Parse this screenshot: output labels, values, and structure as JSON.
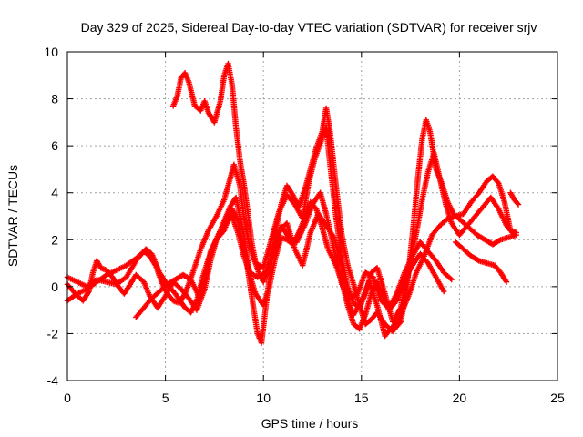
{
  "chart_data": {
    "type": "scatter",
    "title": "Day 329 of 2025, Sidereal Day-to-day VTEC variation (SDTVAR) for receiver srjv",
    "xlabel": "GPS time / hours",
    "ylabel": "SDTVAR / TECUs",
    "xlim": [
      0,
      25
    ],
    "ylim": [
      -4,
      10
    ],
    "xticks": [
      0,
      5,
      10,
      15,
      20,
      25
    ],
    "xtick_labels": [
      "0",
      "5",
      "10",
      "15",
      "20",
      "25"
    ],
    "yticks": [
      -4,
      -2,
      0,
      2,
      4,
      6,
      8,
      10
    ],
    "ytick_labels": [
      "-4",
      "-2",
      "0",
      "2",
      "4",
      "6",
      "8",
      "10"
    ],
    "grid": true,
    "marker": "plus",
    "color": "#ff0000",
    "series": [
      {
        "points": [
          [
            0.0,
            0.4
          ],
          [
            0.5,
            0.2
          ],
          [
            1.0,
            0.0
          ],
          [
            1.5,
            0.3
          ],
          [
            2.0,
            0.2
          ],
          [
            2.5,
            0.1
          ],
          [
            3.0,
            0.4
          ],
          [
            3.5,
            1.1
          ],
          [
            4.0,
            1.6
          ],
          [
            4.3,
            1.4
          ],
          [
            4.7,
            0.6
          ],
          [
            5.0,
            0.2
          ],
          [
            5.5,
            -0.3
          ],
          [
            6.0,
            -0.9
          ],
          [
            6.3,
            -1.1
          ],
          [
            6.6,
            -0.6
          ],
          [
            6.9,
            0.4
          ],
          [
            7.2,
            1.2
          ],
          [
            7.6,
            2.0
          ],
          [
            8.0,
            2.8
          ],
          [
            8.3,
            3.4
          ],
          [
            8.6,
            3.8
          ],
          [
            9.0,
            2.2
          ],
          [
            9.3,
            0.5
          ],
          [
            9.6,
            -0.3
          ],
          [
            10.0,
            -0.8
          ],
          [
            10.3,
            0.0
          ],
          [
            10.6,
            1.2
          ],
          [
            10.9,
            2.1
          ],
          [
            11.2,
            2.0
          ],
          [
            11.5,
            1.8
          ],
          [
            11.8,
            2.3
          ],
          [
            12.1,
            2.9
          ],
          [
            12.4,
            3.6
          ],
          [
            12.7,
            3.3
          ],
          [
            13.0,
            2.5
          ],
          [
            13.3,
            1.6
          ],
          [
            13.7,
            0.9
          ],
          [
            14.0,
            0.2
          ],
          [
            14.3,
            -0.8
          ],
          [
            14.6,
            -1.6
          ],
          [
            14.9,
            -1.8
          ],
          [
            15.2,
            -1.2
          ],
          [
            15.5,
            -0.3
          ],
          [
            15.8,
            0.2
          ],
          [
            16.1,
            -0.4
          ],
          [
            16.4,
            -1.0
          ],
          [
            16.8,
            -0.6
          ],
          [
            17.2,
            0.3
          ],
          [
            17.6,
            0.9
          ],
          [
            18.0,
            1.4
          ],
          [
            18.4,
            1.0
          ],
          [
            18.8,
            0.4
          ],
          [
            19.2,
            -0.2
          ]
        ]
      },
      {
        "points": [
          [
            0.0,
            -0.6
          ],
          [
            0.5,
            -0.3
          ],
          [
            1.0,
            -0.1
          ],
          [
            1.5,
            0.2
          ],
          [
            2.0,
            0.5
          ],
          [
            2.5,
            0.7
          ],
          [
            3.0,
            0.9
          ],
          [
            3.5,
            1.2
          ],
          [
            3.9,
            1.5
          ],
          [
            4.2,
            1.3
          ],
          [
            4.5,
            0.9
          ],
          [
            4.8,
            0.2
          ],
          [
            5.1,
            -0.3
          ],
          [
            5.4,
            -0.6
          ],
          [
            5.7,
            -0.7
          ],
          [
            6.0,
            -0.3
          ],
          [
            6.4,
            0.6
          ],
          [
            6.8,
            1.6
          ],
          [
            7.2,
            2.4
          ],
          [
            7.6,
            3.0
          ],
          [
            8.0,
            3.7
          ],
          [
            8.3,
            4.6
          ],
          [
            8.5,
            5.2
          ],
          [
            8.8,
            4.3
          ],
          [
            9.0,
            3.0
          ],
          [
            9.3,
            1.7
          ],
          [
            9.6,
            1.0
          ],
          [
            10.0,
            0.8
          ],
          [
            10.4,
            2.0
          ],
          [
            10.8,
            3.2
          ],
          [
            11.2,
            3.9
          ],
          [
            11.6,
            3.5
          ],
          [
            12.0,
            2.9
          ],
          [
            12.3,
            4.4
          ],
          [
            12.6,
            5.4
          ],
          [
            12.9,
            6.1
          ],
          [
            13.2,
            6.8
          ],
          [
            13.4,
            5.2
          ],
          [
            13.7,
            3.0
          ],
          [
            14.0,
            1.2
          ],
          [
            14.3,
            0.0
          ],
          [
            14.6,
            -0.7
          ],
          [
            14.9,
            -0.9
          ],
          [
            15.2,
            -0.3
          ],
          [
            15.5,
            0.6
          ],
          [
            15.8,
            0.8
          ],
          [
            16.2,
            -0.3
          ],
          [
            16.6,
            -1.5
          ],
          [
            17.0,
            -0.9
          ],
          [
            17.4,
            0.6
          ],
          [
            17.8,
            2.3
          ],
          [
            18.1,
            3.7
          ],
          [
            18.4,
            4.9
          ],
          [
            18.7,
            5.7
          ],
          [
            19.0,
            4.6
          ],
          [
            19.3,
            3.5
          ],
          [
            19.6,
            2.7
          ],
          [
            20.0,
            2.2
          ],
          [
            20.4,
            2.6
          ],
          [
            20.8,
            3.0
          ],
          [
            21.2,
            3.4
          ],
          [
            21.6,
            3.8
          ],
          [
            22.0,
            3.3
          ],
          [
            22.4,
            2.6
          ],
          [
            22.8,
            2.2
          ]
        ]
      },
      {
        "points": [
          [
            5.4,
            7.7
          ],
          [
            5.6,
            8.1
          ],
          [
            5.8,
            8.9
          ],
          [
            6.0,
            9.1
          ],
          [
            6.2,
            8.7
          ],
          [
            6.5,
            7.7
          ],
          [
            6.8,
            7.5
          ],
          [
            7.0,
            7.9
          ],
          [
            7.2,
            7.4
          ],
          [
            7.5,
            7.0
          ],
          [
            7.8,
            7.9
          ],
          [
            8.0,
            9.0
          ],
          [
            8.2,
            9.5
          ],
          [
            8.4,
            8.6
          ],
          [
            8.6,
            6.8
          ],
          [
            8.8,
            5.4
          ],
          [
            9.0,
            4.4
          ],
          [
            9.2,
            3.2
          ],
          [
            9.4,
            1.9
          ],
          [
            9.6,
            1.0
          ],
          [
            9.8,
            0.5
          ],
          [
            10.0,
            0.2
          ],
          [
            10.3,
            0.9
          ],
          [
            10.6,
            2.3
          ],
          [
            10.9,
            3.5
          ],
          [
            11.2,
            4.3
          ],
          [
            11.5,
            3.9
          ],
          [
            11.8,
            3.4
          ],
          [
            12.1,
            4.1
          ],
          [
            12.4,
            5.0
          ],
          [
            12.7,
            5.9
          ],
          [
            13.0,
            6.6
          ],
          [
            13.2,
            7.6
          ],
          [
            13.4,
            6.6
          ],
          [
            13.7,
            4.3
          ],
          [
            14.0,
            2.2
          ],
          [
            14.3,
            0.9
          ],
          [
            14.6,
            0.1
          ],
          [
            14.9,
            -0.8
          ],
          [
            15.2,
            -1.6
          ],
          [
            15.5,
            -1.4
          ],
          [
            15.8,
            -1.1
          ],
          [
            16.2,
            -1.6
          ],
          [
            16.6,
            -1.9
          ],
          [
            17.0,
            -1.5
          ],
          [
            17.3,
            -0.2
          ],
          [
            17.6,
            2.2
          ],
          [
            17.9,
            4.8
          ],
          [
            18.1,
            6.3
          ],
          [
            18.3,
            7.1
          ],
          [
            18.5,
            6.6
          ],
          [
            18.8,
            5.0
          ],
          [
            19.1,
            4.4
          ],
          [
            19.4,
            3.6
          ],
          [
            19.7,
            3.1
          ],
          [
            20.1,
            2.8
          ],
          [
            20.5,
            2.5
          ],
          [
            20.9,
            2.2
          ],
          [
            21.3,
            2.0
          ],
          [
            21.7,
            1.8
          ],
          [
            22.1,
            2.0
          ],
          [
            22.5,
            2.1
          ],
          [
            22.9,
            2.2
          ]
        ]
      },
      {
        "points": [
          [
            0.0,
            0.1
          ],
          [
            0.4,
            -0.3
          ],
          [
            0.8,
            -0.6
          ],
          [
            1.1,
            -0.2
          ],
          [
            1.3,
            0.6
          ],
          [
            1.5,
            1.1
          ],
          [
            1.7,
            0.8
          ],
          [
            2.0,
            0.7
          ],
          [
            2.3,
            0.4
          ],
          [
            2.6,
            0.0
          ],
          [
            2.9,
            -0.3
          ],
          [
            3.2,
            0.1
          ],
          [
            3.5,
            0.5
          ],
          [
            3.9,
            0.2
          ],
          [
            4.2,
            -0.4
          ],
          [
            4.6,
            -0.9
          ],
          [
            5.0,
            -0.4
          ],
          [
            5.4,
            0.2
          ],
          [
            5.8,
            -0.1
          ],
          [
            6.2,
            -0.5
          ],
          [
            6.6,
            -1.0
          ],
          [
            7.0,
            -0.1
          ],
          [
            7.3,
            1.1
          ],
          [
            7.6,
            2.0
          ],
          [
            8.0,
            2.4
          ],
          [
            8.4,
            3.3
          ],
          [
            8.7,
            2.8
          ],
          [
            9.1,
            1.3
          ],
          [
            9.4,
            -0.4
          ],
          [
            9.7,
            -2.0
          ],
          [
            9.9,
            -2.4
          ],
          [
            10.2,
            -0.3
          ],
          [
            10.5,
            1.5
          ],
          [
            10.8,
            2.4
          ],
          [
            11.2,
            2.7
          ],
          [
            11.6,
            1.6
          ],
          [
            12.0,
            0.9
          ],
          [
            12.4,
            2.3
          ],
          [
            12.8,
            3.1
          ],
          [
            13.2,
            2.6
          ],
          [
            13.6,
            2.1
          ],
          [
            14.0,
            0.9
          ],
          [
            14.3,
            -0.6
          ],
          [
            14.6,
            -1.2
          ],
          [
            15.0,
            -0.6
          ],
          [
            15.4,
            0.2
          ],
          [
            15.8,
            -0.8
          ],
          [
            16.2,
            -2.1
          ],
          [
            16.6,
            -1.7
          ],
          [
            17.0,
            -1.2
          ],
          [
            17.4,
            -0.4
          ],
          [
            17.8,
            0.6
          ],
          [
            18.2,
            1.3
          ],
          [
            18.6,
            2.2
          ],
          [
            19.0,
            2.6
          ],
          [
            19.4,
            2.9
          ],
          [
            19.8,
            3.0
          ],
          [
            20.2,
            3.1
          ],
          [
            20.6,
            3.6
          ],
          [
            21.0,
            4.0
          ],
          [
            21.4,
            4.5
          ],
          [
            21.7,
            4.7
          ],
          [
            22.0,
            4.4
          ],
          [
            22.3,
            3.6
          ],
          [
            22.6,
            2.4
          ],
          [
            22.9,
            2.3
          ]
        ]
      },
      {
        "points": [
          [
            3.5,
            -1.3
          ],
          [
            3.9,
            -0.9
          ],
          [
            4.3,
            -0.5
          ],
          [
            4.7,
            -0.2
          ],
          [
            5.1,
            0.1
          ],
          [
            5.5,
            0.3
          ],
          [
            5.9,
            0.5
          ],
          [
            6.3,
            0.3
          ],
          [
            6.7,
            -0.4
          ],
          [
            7.0,
            0.2
          ],
          [
            7.3,
            1.5
          ],
          [
            7.7,
            2.2
          ],
          [
            8.0,
            2.6
          ],
          [
            8.4,
            3.0
          ],
          [
            8.7,
            2.3
          ],
          [
            9.0,
            1.3
          ],
          [
            9.3,
            0.6
          ],
          [
            9.7,
            0.4
          ],
          [
            10.1,
            0.6
          ],
          [
            10.5,
            1.4
          ],
          [
            10.9,
            2.6
          ],
          [
            11.3,
            2.1
          ],
          [
            11.7,
            1.9
          ],
          [
            12.1,
            2.6
          ],
          [
            12.5,
            3.5
          ],
          [
            12.9,
            4.0
          ],
          [
            13.2,
            3.1
          ],
          [
            13.6,
            1.6
          ],
          [
            14.0,
            0.1
          ],
          [
            14.4,
            -0.5
          ],
          [
            14.8,
            -0.3
          ],
          [
            15.2,
            0.6
          ],
          [
            15.6,
            0.4
          ],
          [
            16.0,
            -0.6
          ],
          [
            16.4,
            -0.9
          ],
          [
            16.8,
            -0.3
          ],
          [
            17.2,
            0.6
          ],
          [
            17.6,
            1.3
          ],
          [
            18.0,
            1.9
          ],
          [
            18.4,
            1.5
          ],
          [
            18.8,
            1.1
          ],
          [
            19.2,
            0.6
          ],
          [
            19.6,
            0.3
          ]
        ]
      },
      {
        "points": [
          [
            19.8,
            1.9
          ],
          [
            20.2,
            1.6
          ],
          [
            20.6,
            1.3
          ],
          [
            21.0,
            1.1
          ],
          [
            21.4,
            1.0
          ],
          [
            21.8,
            0.9
          ],
          [
            22.1,
            0.6
          ],
          [
            22.4,
            0.2
          ]
        ]
      },
      {
        "points": [
          [
            22.6,
            4.0
          ],
          [
            22.8,
            3.7
          ],
          [
            23.0,
            3.5
          ]
        ]
      }
    ]
  }
}
